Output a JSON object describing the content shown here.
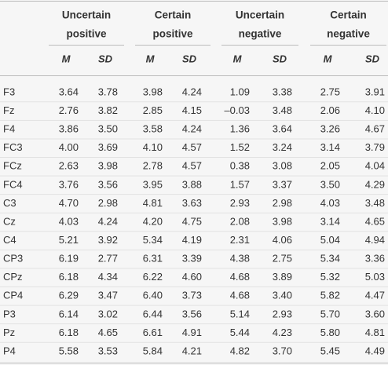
{
  "table": {
    "groups": [
      [
        "Uncertain",
        "positive"
      ],
      [
        "Certain",
        "positive"
      ],
      [
        "Uncertain",
        "negative"
      ],
      [
        "Certain",
        "negative"
      ]
    ],
    "subheaders": [
      "M",
      "SD",
      "M",
      "SD",
      "M",
      "SD",
      "M",
      "SD"
    ],
    "rows": [
      [
        "F3",
        "3.64",
        "3.78",
        "3.98",
        "4.24",
        "1.09",
        "3.38",
        "2.75",
        "3.91"
      ],
      [
        "Fz",
        "2.76",
        "3.82",
        "2.85",
        "4.15",
        "–0.03",
        "3.48",
        "2.06",
        "4.10"
      ],
      [
        "F4",
        "3.86",
        "3.50",
        "3.58",
        "4.24",
        "1.36",
        "3.64",
        "3.26",
        "4.67"
      ],
      [
        "FC3",
        "4.00",
        "3.69",
        "4.10",
        "4.57",
        "1.52",
        "3.24",
        "3.14",
        "3.79"
      ],
      [
        "FCz",
        "2.63",
        "3.98",
        "2.78",
        "4.57",
        "0.38",
        "3.08",
        "2.05",
        "4.04"
      ],
      [
        "FC4",
        "3.76",
        "3.56",
        "3.95",
        "3.88",
        "1.57",
        "3.37",
        "3.50",
        "4.29"
      ],
      [
        "C3",
        "4.70",
        "2.98",
        "4.81",
        "3.63",
        "2.93",
        "2.98",
        "4.03",
        "3.48"
      ],
      [
        "Cz",
        "4.03",
        "4.24",
        "4.20",
        "4.75",
        "2.08",
        "3.98",
        "3.14",
        "4.65"
      ],
      [
        "C4",
        "5.21",
        "3.92",
        "5.34",
        "4.19",
        "2.31",
        "4.06",
        "5.04",
        "4.94"
      ],
      [
        "CP3",
        "6.19",
        "2.77",
        "6.31",
        "3.39",
        "4.38",
        "2.75",
        "5.34",
        "3.36"
      ],
      [
        "CPz",
        "6.18",
        "4.34",
        "6.22",
        "4.60",
        "4.68",
        "3.89",
        "5.32",
        "5.03"
      ],
      [
        "CP4",
        "6.29",
        "3.47",
        "6.40",
        "3.73",
        "4.68",
        "3.40",
        "5.82",
        "4.47"
      ],
      [
        "P3",
        "6.14",
        "3.02",
        "6.44",
        "3.56",
        "5.14",
        "2.93",
        "5.70",
        "3.60"
      ],
      [
        "Pz",
        "6.18",
        "4.65",
        "6.61",
        "4.91",
        "5.44",
        "4.23",
        "5.80",
        "4.81"
      ],
      [
        "P4",
        "5.58",
        "3.53",
        "5.84",
        "4.21",
        "4.82",
        "3.70",
        "5.45",
        "4.49"
      ]
    ]
  }
}
